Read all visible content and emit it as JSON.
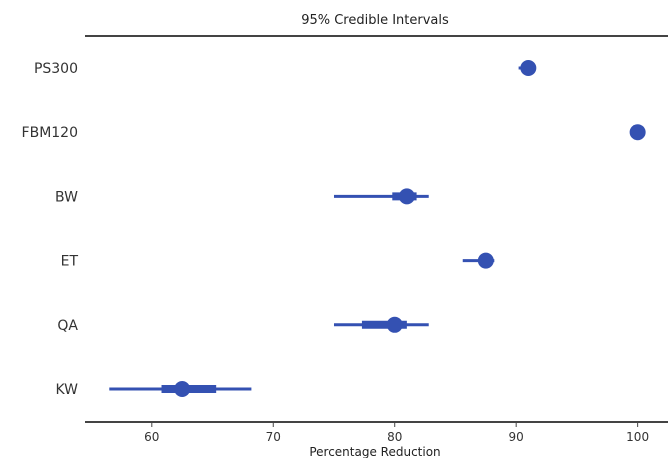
{
  "chart_data": {
    "type": "forest",
    "title": "95% Credible Intervals",
    "xlabel": "Percentage Reduction",
    "ylabel": "",
    "xlim": [
      54.5,
      102.5
    ],
    "xticks": [
      60,
      70,
      80,
      90,
      100
    ],
    "xtick_labels": [
      "60",
      "70",
      "80",
      "90",
      "100"
    ],
    "marker_color": "#3451b2",
    "grid": false,
    "series": [
      {
        "category": "PS300",
        "point": 91.0,
        "hdi_95": [
          90.2,
          91.3
        ],
        "interquartile": [
          90.6,
          91.2
        ]
      },
      {
        "category": "FBM120",
        "point": 100.0,
        "hdi_95": [
          99.9,
          100.0
        ],
        "interquartile": [
          99.95,
          100.0
        ]
      },
      {
        "category": "BW",
        "point": 81.0,
        "hdi_95": [
          75.0,
          82.8
        ],
        "interquartile": [
          79.8,
          81.8
        ]
      },
      {
        "category": "ET",
        "point": 87.5,
        "hdi_95": [
          85.6,
          88.2
        ],
        "interquartile": [
          87.0,
          87.9
        ]
      },
      {
        "category": "QA",
        "point": 80.0,
        "hdi_95": [
          75.0,
          82.8
        ],
        "interquartile": [
          77.3,
          81.0
        ]
      },
      {
        "category": "KW",
        "point": 62.5,
        "hdi_95": [
          56.5,
          68.2
        ],
        "interquartile": [
          60.8,
          65.3
        ]
      }
    ]
  }
}
